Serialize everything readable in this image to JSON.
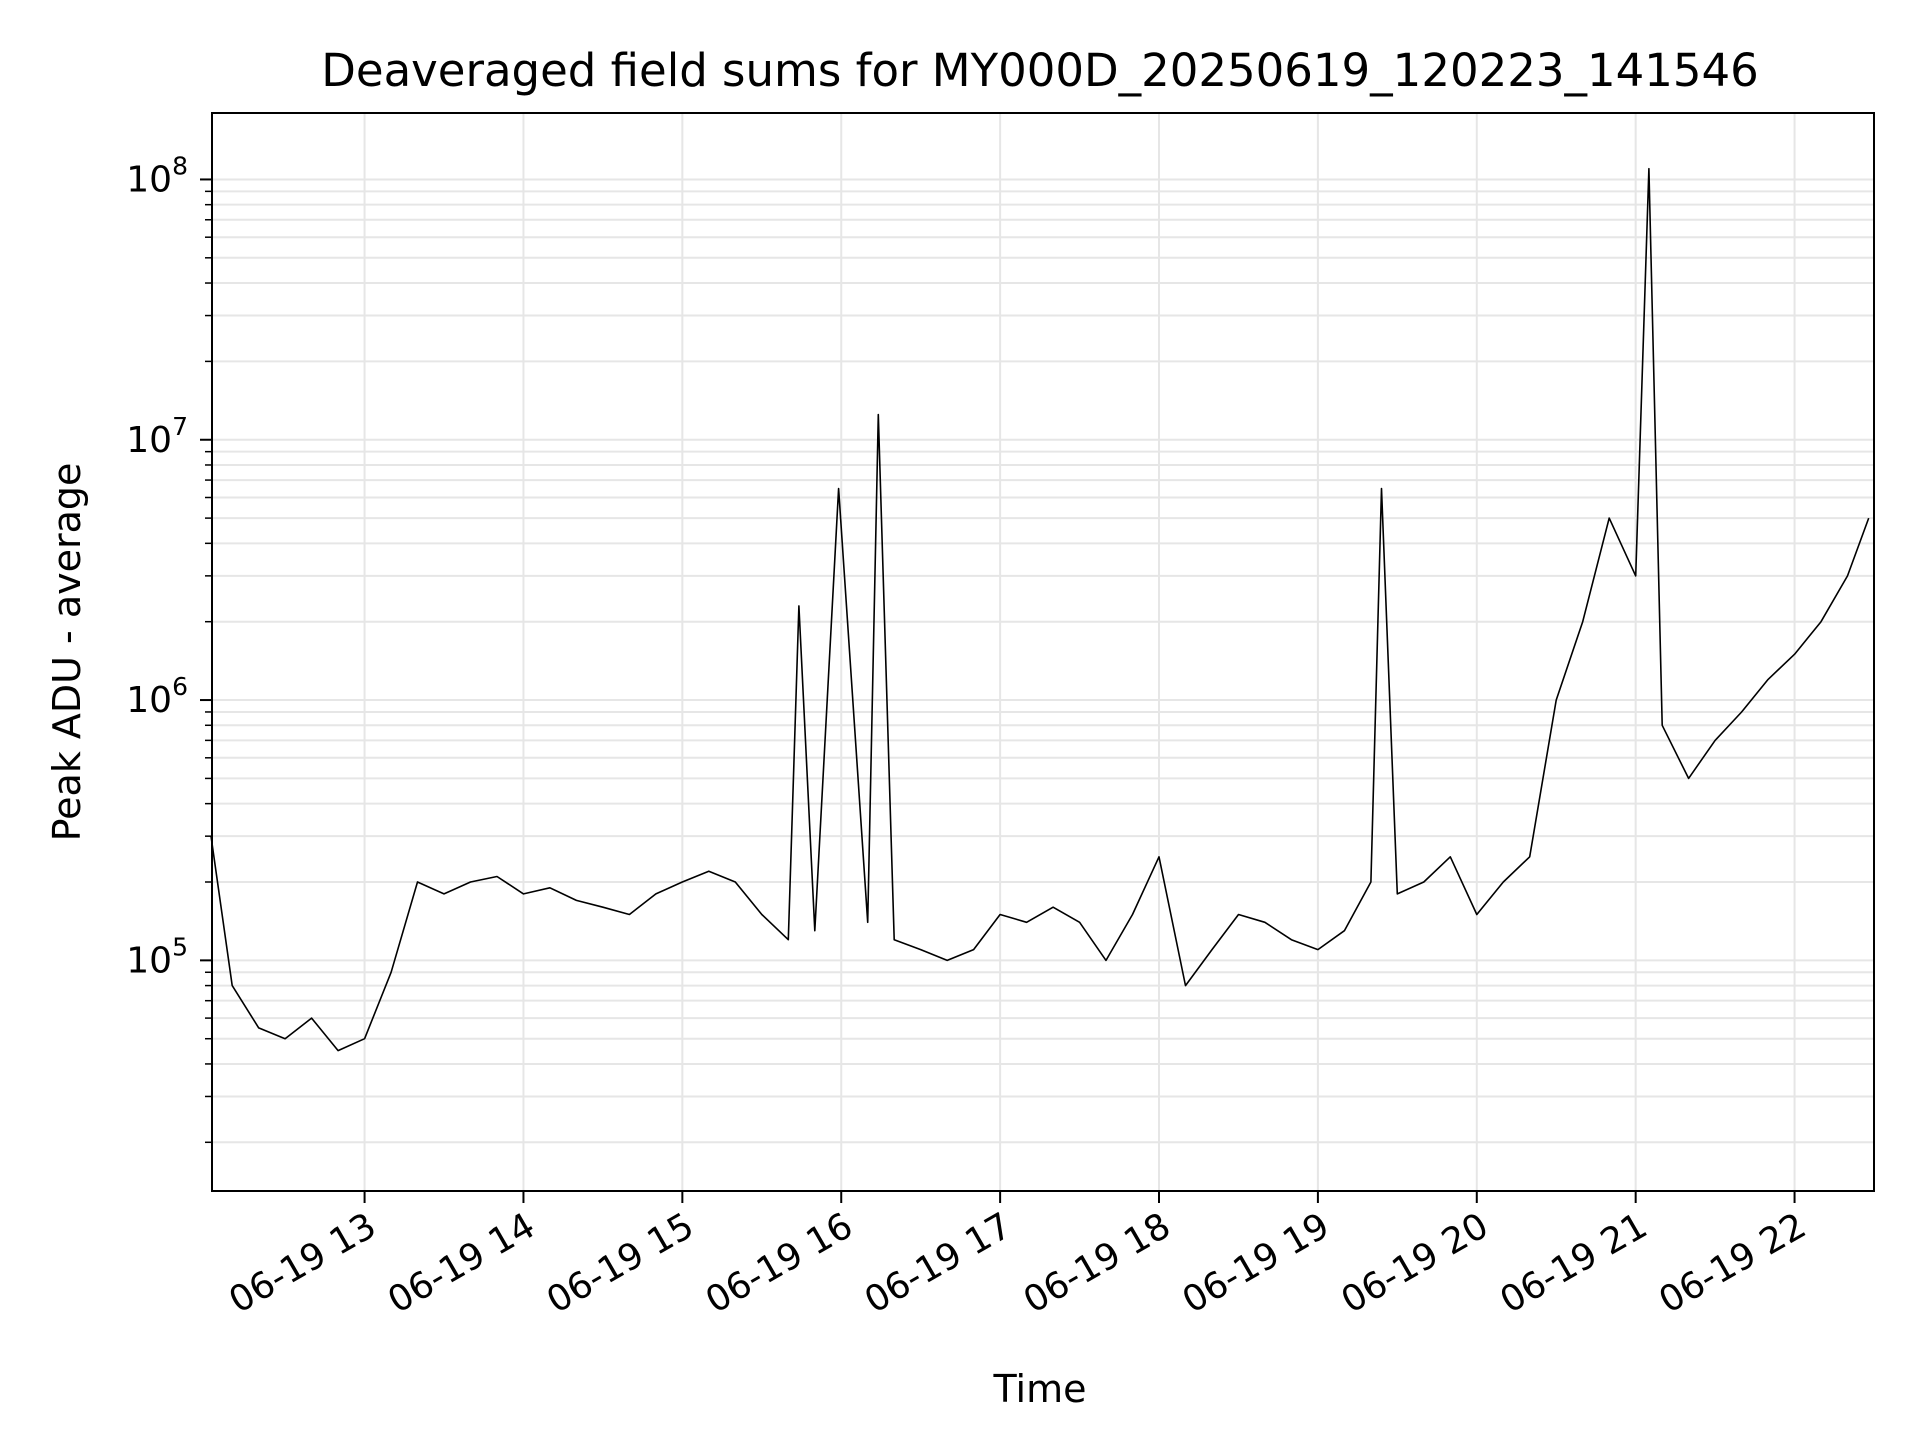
{
  "chart_data": {
    "type": "line",
    "title": "Deaveraged field sums for MY000D_20250619_120223_141546",
    "xlabel": "Time",
    "ylabel": "Peak ADU - average",
    "yscale": "log",
    "ylim": [
      13000,
      180000000
    ],
    "xlim": [
      "06-19 12:02:23",
      "06-19 22:30:00"
    ],
    "grid": "on (major and minor)",
    "line_color": "#000000",
    "grid_color": "#e6e6e6",
    "x_ticks": [
      "06-19 13",
      "06-19 14",
      "06-19 15",
      "06-19 16",
      "06-19 17",
      "06-19 18",
      "06-19 19",
      "06-19 20",
      "06-19 21",
      "06-19 22"
    ],
    "y_ticks": [
      {
        "base": "10",
        "exp": "5",
        "value": 100000
      },
      {
        "base": "10",
        "exp": "6",
        "value": 1000000
      },
      {
        "base": "10",
        "exp": "7",
        "value": 10000000
      },
      {
        "base": "10",
        "exp": "8",
        "value": 100000000
      }
    ],
    "series": [
      {
        "x": [
          "06-19 12:02",
          "06-19 12:10",
          "06-19 12:20",
          "06-19 12:30",
          "06-19 12:40",
          "06-19 12:50",
          "06-19 13:00",
          "06-19 13:10",
          "06-19 13:20",
          "06-19 13:30",
          "06-19 13:40",
          "06-19 13:50",
          "06-19 14:00",
          "06-19 14:10",
          "06-19 14:20",
          "06-19 14:30",
          "06-19 14:40",
          "06-19 14:50",
          "06-19 15:00",
          "06-19 15:10",
          "06-19 15:20",
          "06-19 15:30",
          "06-19 15:40",
          "06-19 15:44",
          "06-19 15:50",
          "06-19 15:59",
          "06-19 16:10",
          "06-19 16:14",
          "06-19 16:20",
          "06-19 16:30",
          "06-19 16:40",
          "06-19 16:50",
          "06-19 17:00",
          "06-19 17:10",
          "06-19 17:20",
          "06-19 17:30",
          "06-19 17:40",
          "06-19 17:50",
          "06-19 18:00",
          "06-19 18:10",
          "06-19 18:20",
          "06-19 18:30",
          "06-19 18:40",
          "06-19 18:50",
          "06-19 19:00",
          "06-19 19:10",
          "06-19 19:20",
          "06-19 19:24",
          "06-19 19:30",
          "06-19 19:40",
          "06-19 19:50",
          "06-19 20:00",
          "06-19 20:10",
          "06-19 20:20",
          "06-19 20:30",
          "06-19 20:40",
          "06-19 20:50",
          "06-19 21:00",
          "06-19 21:05",
          "06-19 21:10",
          "06-19 21:20",
          "06-19 21:30",
          "06-19 21:40",
          "06-19 21:50",
          "06-19 22:00",
          "06-19 22:10",
          "06-19 22:20",
          "06-19 22:28"
        ],
        "values": [
          300000,
          80000,
          55000,
          50000,
          60000,
          45000,
          50000,
          90000,
          200000,
          180000,
          200000,
          210000,
          180000,
          190000,
          170000,
          160000,
          150000,
          180000,
          200000,
          220000,
          200000,
          150000,
          120000,
          2300000,
          130000,
          6500000,
          140000,
          12500000,
          120000,
          110000,
          100000,
          110000,
          150000,
          140000,
          160000,
          140000,
          100000,
          150000,
          250000,
          80000,
          110000,
          150000,
          140000,
          120000,
          110000,
          130000,
          200000,
          6500000,
          180000,
          200000,
          250000,
          150000,
          200000,
          250000,
          1000000,
          2000000,
          5000000,
          3000000,
          110000000,
          800000,
          500000,
          700000,
          900000,
          1200000,
          1500000,
          2000000,
          3000000,
          5000000
        ]
      }
    ]
  }
}
